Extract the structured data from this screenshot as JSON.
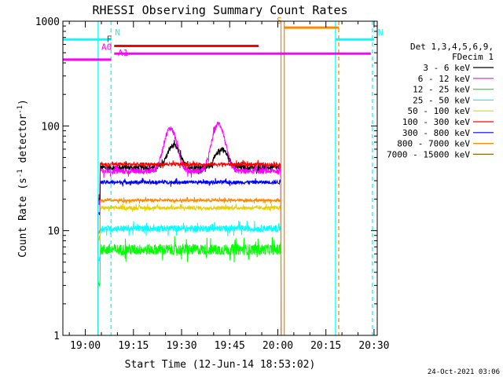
{
  "chart_data": {
    "type": "line",
    "title": "RHESSI Observing Summary Count Rates",
    "xlabel": "Start Time (12-Jun-14 18:53:02)",
    "ylabel_main": "Count Rate (s",
    "ylabel_sup1": "-1",
    "ylabel_mid": " detector",
    "ylabel_sup2": "-1",
    "ylabel_end": ")",
    "y_scale": "log",
    "ylim": [
      1,
      1000
    ],
    "xlim_minutes_after_1853": [
      0,
      98
    ],
    "x_ticks": [
      {
        "label": "19:00",
        "min": 7
      },
      {
        "label": "19:15",
        "min": 22
      },
      {
        "label": "19:30",
        "min": 37
      },
      {
        "label": "19:45",
        "min": 52
      },
      {
        "label": "20:00",
        "min": 67
      },
      {
        "label": "20:15",
        "min": 82
      },
      {
        "label": "20:30",
        "min": 97
      }
    ],
    "y_ticks": [
      {
        "label": "1",
        "value": 1
      },
      {
        "label": "10",
        "value": 10
      },
      {
        "label": "100",
        "value": 100
      },
      {
        "label": "1000",
        "value": 1000
      }
    ],
    "legend_header": [
      "Det 1,3,4,5,6,9,",
      "FDecim 1"
    ],
    "legend_placement": "right",
    "timestamp": "24-Oct-2021 03:06",
    "series": [
      {
        "name": "3 - 6 keV",
        "color": "#000000",
        "level": 40,
        "noise": 0.06,
        "peaks": [
          {
            "t": 34.5,
            "v": 65,
            "w": 2.5
          },
          {
            "t": 49.5,
            "v": 60,
            "w": 2.5
          }
        ]
      },
      {
        "name": "6 - 12 keV",
        "color": "#ff00ff",
        "level": 37,
        "noise": 0.06,
        "peaks": [
          {
            "t": 33.5,
            "v": 95,
            "w": 2.5
          },
          {
            "t": 48.5,
            "v": 105,
            "w": 2.5
          }
        ]
      },
      {
        "name": "12 - 25 keV",
        "color": "#00ff00",
        "level": 6.6,
        "noise": 0.12,
        "peaks": []
      },
      {
        "name": "25 - 50 keV",
        "color": "#00ffff",
        "level": 10.5,
        "noise": 0.07,
        "peaks": []
      },
      {
        "name": "50 - 100 keV",
        "color": "#e8d000",
        "level": 16.5,
        "noise": 0.04,
        "peaks": []
      },
      {
        "name": "100 - 300 keV",
        "color": "#ff0000",
        "level": 43,
        "noise": 0.04,
        "peaks": []
      },
      {
        "name": "300 - 800 keV",
        "color": "#0000ff",
        "level": 29,
        "noise": 0.04,
        "peaks": []
      },
      {
        "name": "800 - 7000 keV",
        "color": "#ff8800",
        "level": 19.5,
        "noise": 0.03,
        "peaks": []
      },
      {
        "name": "7000 - 15000 keV",
        "color": "#8b6914",
        "level": 1,
        "noise": 0,
        "peaks": []
      }
    ],
    "data_interval_minutes": [
      11,
      68
    ],
    "flags": [
      {
        "label": "N",
        "color": "#00ffff",
        "start": 0,
        "end": 15,
        "y": 670
      },
      {
        "label": "N",
        "color": "#00ffff",
        "start": 85,
        "end": 97,
        "y": 670
      },
      {
        "label": "S",
        "color": "#ff8800",
        "start": 69,
        "end": 86,
        "y": 870
      },
      {
        "label": "F",
        "color": "#ff0000",
        "start": 16,
        "end": 61,
        "y": 580
      },
      {
        "label": "A0",
        "color": "#ff00ff",
        "start": 16,
        "end": 96,
        "y": 490
      },
      {
        "label": "A1",
        "color": "#ff00ff",
        "start": 0,
        "end": 15,
        "y": 430
      }
    ],
    "vertical_markers": [
      {
        "t": 11,
        "color": "#00ffff",
        "style": "solid"
      },
      {
        "t": 15,
        "color": "#00ffff",
        "style": "dashed"
      },
      {
        "t": 68,
        "color": "#ff8800",
        "style": "solid"
      },
      {
        "t": 69,
        "color": "#ff8800",
        "style": "solid"
      },
      {
        "t": 85,
        "color": "#00ffff",
        "style": "solid"
      },
      {
        "t": 86,
        "color": "#ff8800",
        "style": "dashed"
      },
      {
        "t": 96.5,
        "color": "#00ffff",
        "style": "dashed"
      }
    ]
  }
}
